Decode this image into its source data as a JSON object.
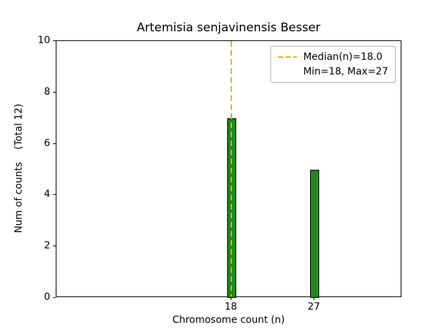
{
  "chart_data": {
    "type": "bar",
    "title": "Artemisia senjavinensis Besser",
    "xlabel": "Chromosome count (n)",
    "ylabel": "Num of counts    (Total 12)",
    "x": [
      18,
      27
    ],
    "values": [
      7,
      5
    ],
    "total_counts": 12,
    "bar_color": "#1a8a1a",
    "bar_edge_color": "#000000",
    "median_line": {
      "x": 18,
      "value_label": "18.0",
      "color": "#FFA500",
      "style": "dashed"
    },
    "legend": {
      "position": "upper-right",
      "entries": [
        {
          "label": "Median(n)=18.0",
          "sample": "dashed-orange-line"
        },
        {
          "label": "Min=18, Max=27",
          "sample": "none"
        }
      ]
    },
    "xlim": [
      -1,
      36.5
    ],
    "ylim": [
      0,
      10
    ],
    "x_ticks": [
      18,
      27
    ],
    "y_ticks": [
      0,
      2,
      4,
      6,
      8,
      10
    ],
    "grid": false
  }
}
